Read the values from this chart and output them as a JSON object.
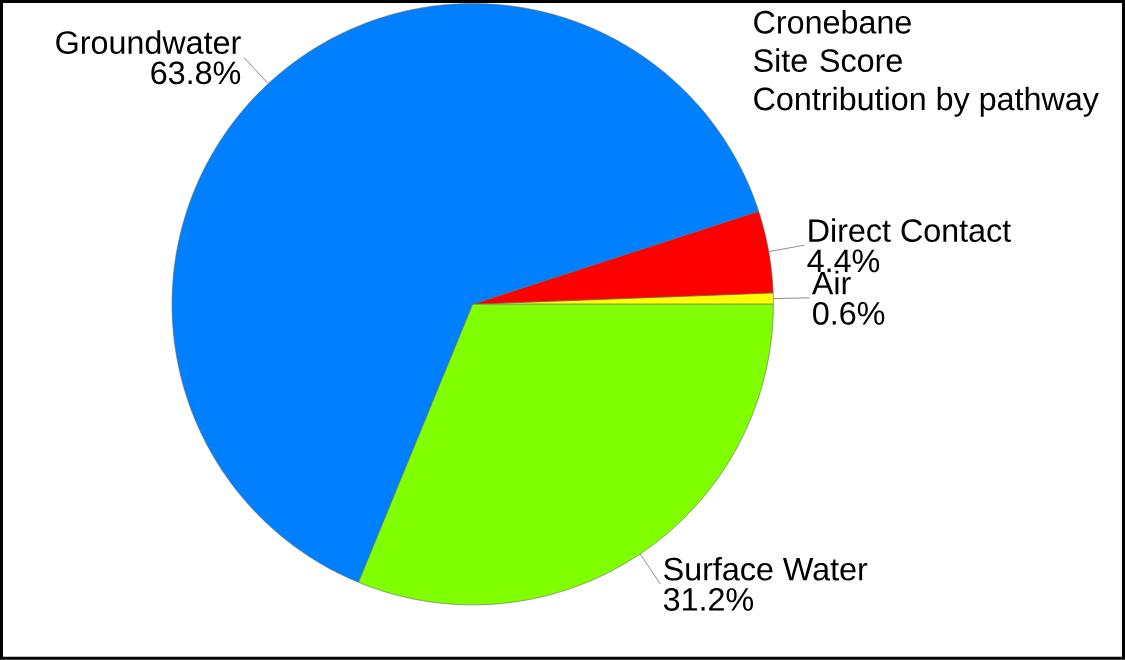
{
  "chart_data": {
    "type": "pie",
    "title": "Cronebane Site Score",
    "subtitle": "Contribution by pathway",
    "categories": [
      "Air",
      "Direct Contact",
      "Groundwater",
      "Surface Water"
    ],
    "values": [
      0.6,
      4.4,
      63.8,
      31.2
    ],
    "colors": [
      "#ffff00",
      "#ff0000",
      "#0080ff",
      "#80ff00"
    ],
    "value_labels": [
      "0.6%",
      "4.4%",
      "63.8%",
      "31.2%"
    ]
  }
}
